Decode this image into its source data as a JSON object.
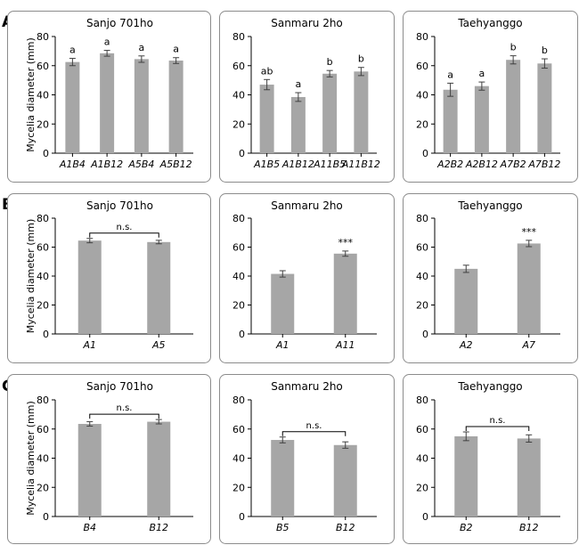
{
  "colors": {
    "bar": "#a6a6a6",
    "frame": "#8c8c8c",
    "axis": "#000000",
    "error": "#404040"
  },
  "ylabel": "Mycelia diameter (mm)",
  "chart_data": [
    {
      "panel": "A",
      "title": "Sanjo 701ho",
      "type": "bar",
      "ylim": [
        0,
        80
      ],
      "yticks": [
        0,
        20,
        40,
        60,
        80
      ],
      "categories": [
        "A1B4",
        "A1B12",
        "A5B4",
        "A5B12"
      ],
      "values": [
        62.5,
        68.5,
        64.5,
        63.5
      ],
      "errors": [
        2.5,
        2,
        2.2,
        2
      ],
      "letters": [
        "a",
        "a",
        "a",
        "a"
      ]
    },
    {
      "panel": "A",
      "title": "Sanmaru 2ho",
      "type": "bar",
      "ylim": [
        0,
        80
      ],
      "yticks": [
        0,
        20,
        40,
        60,
        80
      ],
      "categories": [
        "A1B5",
        "A1B12",
        "A11B5",
        "A11B12"
      ],
      "values": [
        47,
        38.5,
        54.5,
        56
      ],
      "errors": [
        3.5,
        3,
        2.2,
        2.8
      ],
      "letters": [
        "ab",
        "a",
        "b",
        "b"
      ]
    },
    {
      "panel": "A",
      "title": "Taehyanggo",
      "type": "bar",
      "ylim": [
        0,
        80
      ],
      "yticks": [
        0,
        20,
        40,
        60,
        80
      ],
      "categories": [
        "A2B2",
        "A2B12",
        "A7B2",
        "A7B12"
      ],
      "values": [
        43.5,
        46,
        64,
        61.5
      ],
      "errors": [
        4.5,
        2.8,
        2.8,
        3.2
      ],
      "letters": [
        "a",
        "a",
        "b",
        "b"
      ]
    },
    {
      "panel": "B",
      "title": "Sanjo 701ho",
      "type": "bar",
      "ylim": [
        0,
        80
      ],
      "yticks": [
        0,
        20,
        40,
        60,
        80
      ],
      "categories": [
        "A1",
        "A5"
      ],
      "values": [
        64.5,
        63.5
      ],
      "errors": [
        1.5,
        1.2
      ],
      "significance": "n.s."
    },
    {
      "panel": "B",
      "title": "Sanmaru 2ho",
      "type": "bar",
      "ylim": [
        0,
        80
      ],
      "yticks": [
        0,
        20,
        40,
        60,
        80
      ],
      "categories": [
        "A1",
        "A11"
      ],
      "values": [
        41.5,
        55.5
      ],
      "errors": [
        2.2,
        1.8
      ],
      "stars": [
        "",
        "***"
      ]
    },
    {
      "panel": "B",
      "title": "Taehyanggo",
      "type": "bar",
      "ylim": [
        0,
        80
      ],
      "yticks": [
        0,
        20,
        40,
        60,
        80
      ],
      "categories": [
        "A2",
        "A7"
      ],
      "values": [
        45,
        62.5
      ],
      "errors": [
        2.5,
        2.2
      ],
      "stars": [
        "",
        "***"
      ]
    },
    {
      "panel": "C",
      "title": "Sanjo 701ho",
      "type": "bar",
      "ylim": [
        0,
        80
      ],
      "yticks": [
        0,
        20,
        40,
        60,
        80
      ],
      "categories": [
        "B4",
        "B12"
      ],
      "values": [
        63.5,
        65
      ],
      "errors": [
        1.5,
        1.5
      ],
      "significance": "n.s."
    },
    {
      "panel": "C",
      "title": "Sanmaru 2ho",
      "type": "bar",
      "ylim": [
        0,
        80
      ],
      "yticks": [
        0,
        20,
        40,
        60,
        80
      ],
      "categories": [
        "B5",
        "B12"
      ],
      "values": [
        52.5,
        49
      ],
      "errors": [
        2,
        2.2
      ],
      "significance": "n.s."
    },
    {
      "panel": "C",
      "title": "Taehyanggo",
      "type": "bar",
      "ylim": [
        0,
        80
      ],
      "yticks": [
        0,
        20,
        40,
        60,
        80
      ],
      "categories": [
        "B2",
        "B12"
      ],
      "values": [
        55,
        53.5
      ],
      "errors": [
        3,
        2.5
      ],
      "significance": "n.s."
    }
  ]
}
